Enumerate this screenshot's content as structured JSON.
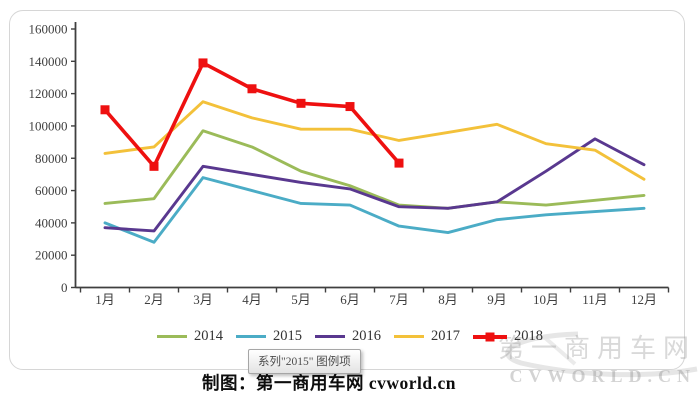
{
  "chart_data": {
    "type": "line",
    "title": "",
    "categories": [
      "1月",
      "2月",
      "3月",
      "4月",
      "5月",
      "6月",
      "7月",
      "8月",
      "9月",
      "10月",
      "11月",
      "12月"
    ],
    "series": [
      {
        "name": "2014",
        "color": "#9BBB59",
        "marker": "none",
        "values": [
          52000,
          55000,
          97000,
          87000,
          72000,
          63000,
          51000,
          49000,
          53000,
          51000,
          54000,
          57000
        ]
      },
      {
        "name": "2015",
        "color": "#4BACC6",
        "marker": "none",
        "values": [
          40000,
          28000,
          68000,
          60000,
          52000,
          51000,
          38000,
          34000,
          42000,
          45000,
          47000,
          49000
        ]
      },
      {
        "name": "2016",
        "color": "#59388F",
        "marker": "none",
        "values": [
          37000,
          35000,
          75000,
          70000,
          65000,
          61000,
          50000,
          49000,
          53000,
          72000,
          92000,
          76000
        ]
      },
      {
        "name": "2017",
        "color": "#F3C13A",
        "marker": "none",
        "values": [
          83000,
          87000,
          115000,
          105000,
          98000,
          98000,
          91000,
          96000,
          101000,
          89000,
          85000,
          67000
        ]
      },
      {
        "name": "2018",
        "color": "#EE1010",
        "marker": "square",
        "values": [
          110000,
          75000,
          139000,
          123000,
          114000,
          112000,
          77000,
          null,
          null,
          null,
          null,
          null
        ]
      }
    ],
    "ylim": [
      0,
      160000
    ],
    "ytick_interval": 20000,
    "ytick_labels": [
      "0",
      "20000",
      "40000",
      "60000",
      "80000",
      "100000",
      "120000",
      "140000",
      "160000"
    ],
    "legend_position": "bottom",
    "grid": false
  },
  "tooltip": {
    "text": "系列\"2015\" 图例项"
  },
  "caption": {
    "text": "制图：第一商用车网 cvworld.cn"
  },
  "watermark": {
    "line1": "第一商用车网",
    "line2": "CVWORLD.CN"
  }
}
